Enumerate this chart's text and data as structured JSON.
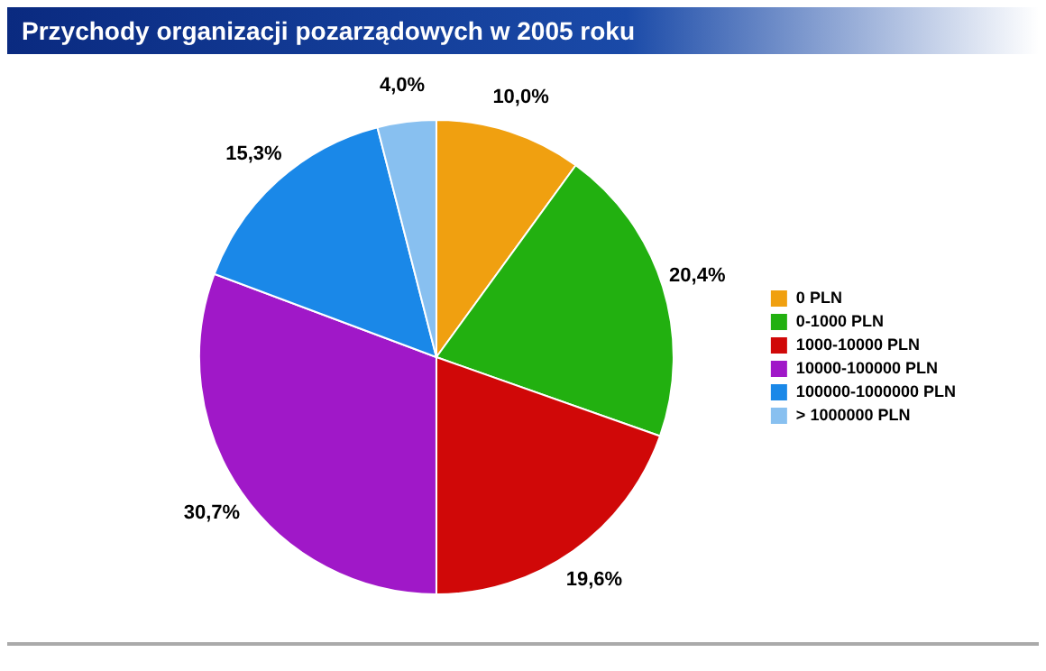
{
  "chart_data": {
    "type": "pie",
    "title": "Przychody organizacji pozarządowych w 2005 roku",
    "categories": [
      "0 PLN",
      "0-1000 PLN",
      "1000-10000 PLN",
      "10000-100000 PLN",
      "100000-1000000 PLN",
      "> 1000000 PLN"
    ],
    "values": [
      10.0,
      20.4,
      19.6,
      30.7,
      15.3,
      4.0
    ],
    "value_labels": [
      "10,0%",
      "20,4%",
      "19,6%",
      "30,7%",
      "15,3%",
      "4,0%"
    ],
    "colors": [
      "#f0a010",
      "#22b010",
      "#d00808",
      "#a018c8",
      "#1a88e8",
      "#88c0f0"
    ],
    "legend": "right"
  }
}
